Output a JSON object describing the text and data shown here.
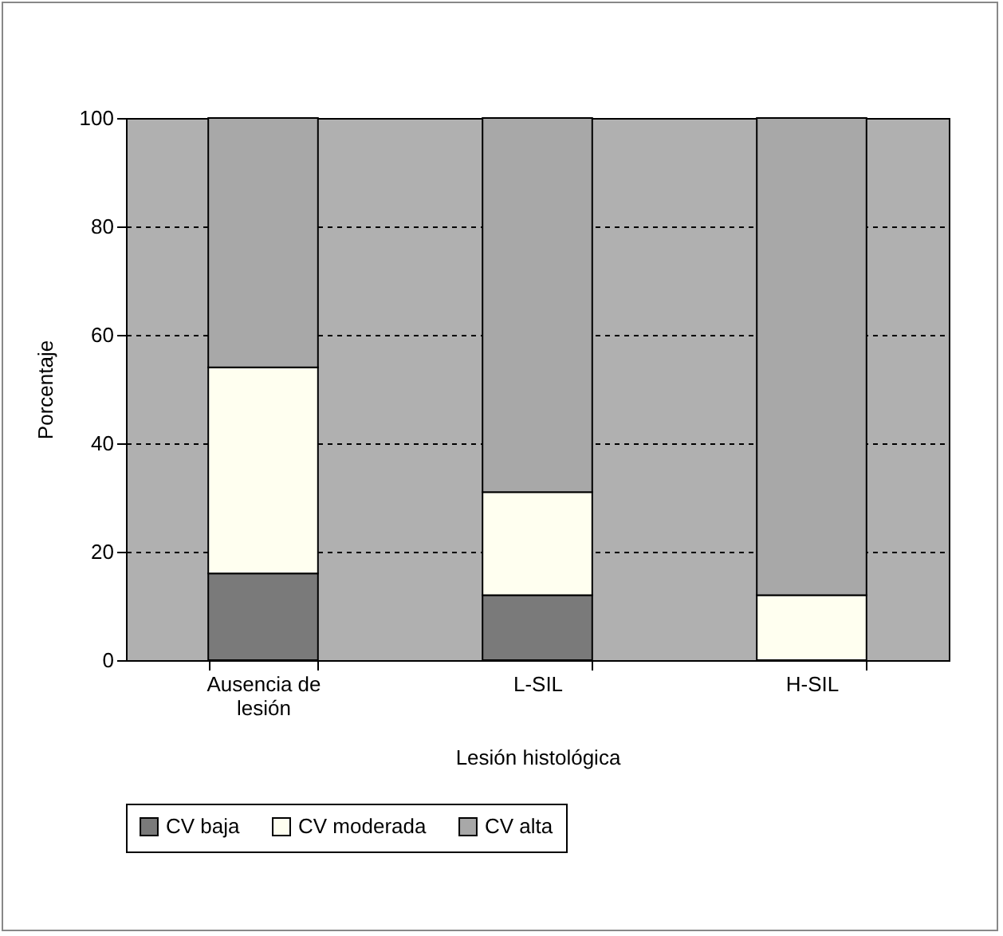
{
  "chart_data": {
    "type": "bar",
    "stacked": true,
    "xlabel": "Lesión histológica",
    "ylabel": "Porcentaje",
    "categories": [
      "Ausencia de lesión",
      "L-SIL",
      "H-SIL"
    ],
    "series": [
      {
        "name": "CV baja",
        "color": "#7a7a7a",
        "values": [
          16,
          12,
          0
        ]
      },
      {
        "name": "CV moderada",
        "color": "#fffff0",
        "values": [
          38,
          19,
          12
        ]
      },
      {
        "name": "CV alta",
        "color": "#a8a8a8",
        "values": [
          46,
          69,
          88
        ]
      }
    ],
    "ylim": [
      0,
      100
    ],
    "yticks": [
      0,
      20,
      40,
      60,
      80,
      100
    ],
    "grid": "y",
    "legend": "bottom"
  }
}
